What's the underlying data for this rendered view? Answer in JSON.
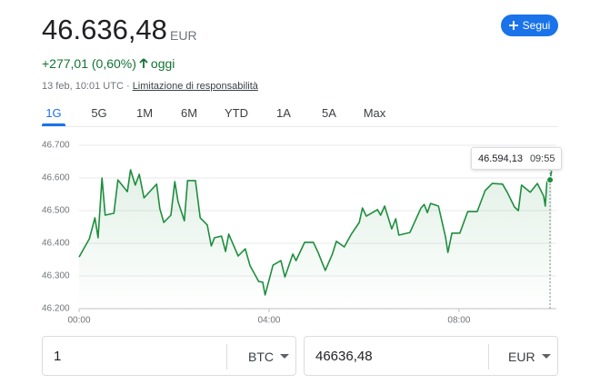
{
  "header": {
    "price": "46.636,48",
    "currency": "EUR",
    "change": "+277,01 (0,60%)",
    "period": "oggi",
    "date": "13 feb, 10:01 UTC",
    "separator": "·",
    "disclaimer": "Limitazione di responsabilità",
    "follow_button": "Segui"
  },
  "tabs": [
    "1G",
    "5G",
    "1M",
    "6M",
    "YTD",
    "1A",
    "5A",
    "Max"
  ],
  "selected_tab": "1G",
  "chart_data": {
    "type": "line",
    "color": "#1e8e3e",
    "x": [
      0,
      13,
      20,
      24,
      29,
      33,
      44,
      49,
      61,
      65,
      71,
      76,
      82,
      98,
      102,
      107,
      116,
      121,
      125,
      133,
      137,
      147,
      153,
      162,
      167,
      171,
      180,
      185,
      189,
      201,
      210,
      216,
      227,
      232,
      235,
      245,
      255,
      260,
      270,
      274,
      285,
      296,
      302,
      311,
      320,
      325,
      335,
      344,
      354,
      358,
      363,
      377,
      381,
      386,
      395,
      400,
      404,
      418,
      432,
      436,
      440,
      444,
      454,
      463,
      466,
      471,
      481,
      491,
      503,
      513,
      522,
      535,
      541,
      550,
      555,
      559,
      570,
      579,
      587,
      589,
      591,
      595,
      597
    ],
    "values": [
      46358,
      46414,
      46478,
      46417,
      46600,
      46486,
      46492,
      46594,
      46558,
      46625,
      46578,
      46611,
      46539,
      46581,
      46506,
      46464,
      46486,
      46589,
      46528,
      46469,
      46592,
      46592,
      46478,
      46456,
      46392,
      46417,
      46422,
      46375,
      46428,
      46361,
      46383,
      46331,
      46283,
      46281,
      46242,
      46333,
      46347,
      46297,
      46367,
      46347,
      46403,
      46403,
      46372,
      46317,
      46367,
      46406,
      46389,
      46428,
      46464,
      46508,
      46483,
      46503,
      46486,
      46514,
      46444,
      46475,
      46425,
      46433,
      46508,
      46519,
      46494,
      46522,
      46514,
      46419,
      46372,
      46431,
      46431,
      46497,
      46497,
      46561,
      46583,
      46581,
      46556,
      46511,
      46500,
      46578,
      46556,
      46583,
      46544,
      46514,
      46589,
      46594.13,
      46622
    ],
    "xlim": [
      0,
      603
    ],
    "ylim": [
      46200,
      46700
    ],
    "xticks": [
      {
        "value": 0,
        "label": "00:00"
      },
      {
        "value": 240,
        "label": "04:00"
      },
      {
        "value": 480,
        "label": "08:00"
      }
    ],
    "yticks": [
      {
        "value": 46200,
        "label": "46.200"
      },
      {
        "value": 46300,
        "label": "46.300"
      },
      {
        "value": 46400,
        "label": "46.400"
      },
      {
        "value": 46500,
        "label": "46.500"
      },
      {
        "value": 46600,
        "label": "46.600"
      },
      {
        "value": 46700,
        "label": "46.700"
      }
    ],
    "grid": true,
    "tooltip": {
      "x": 595,
      "value": 46594.13,
      "label": "46.594,13",
      "time": "09:55"
    }
  },
  "converter": {
    "from": {
      "amount": "1",
      "currency": "BTC"
    },
    "to": {
      "amount": "46636,48",
      "currency": "EUR"
    }
  }
}
